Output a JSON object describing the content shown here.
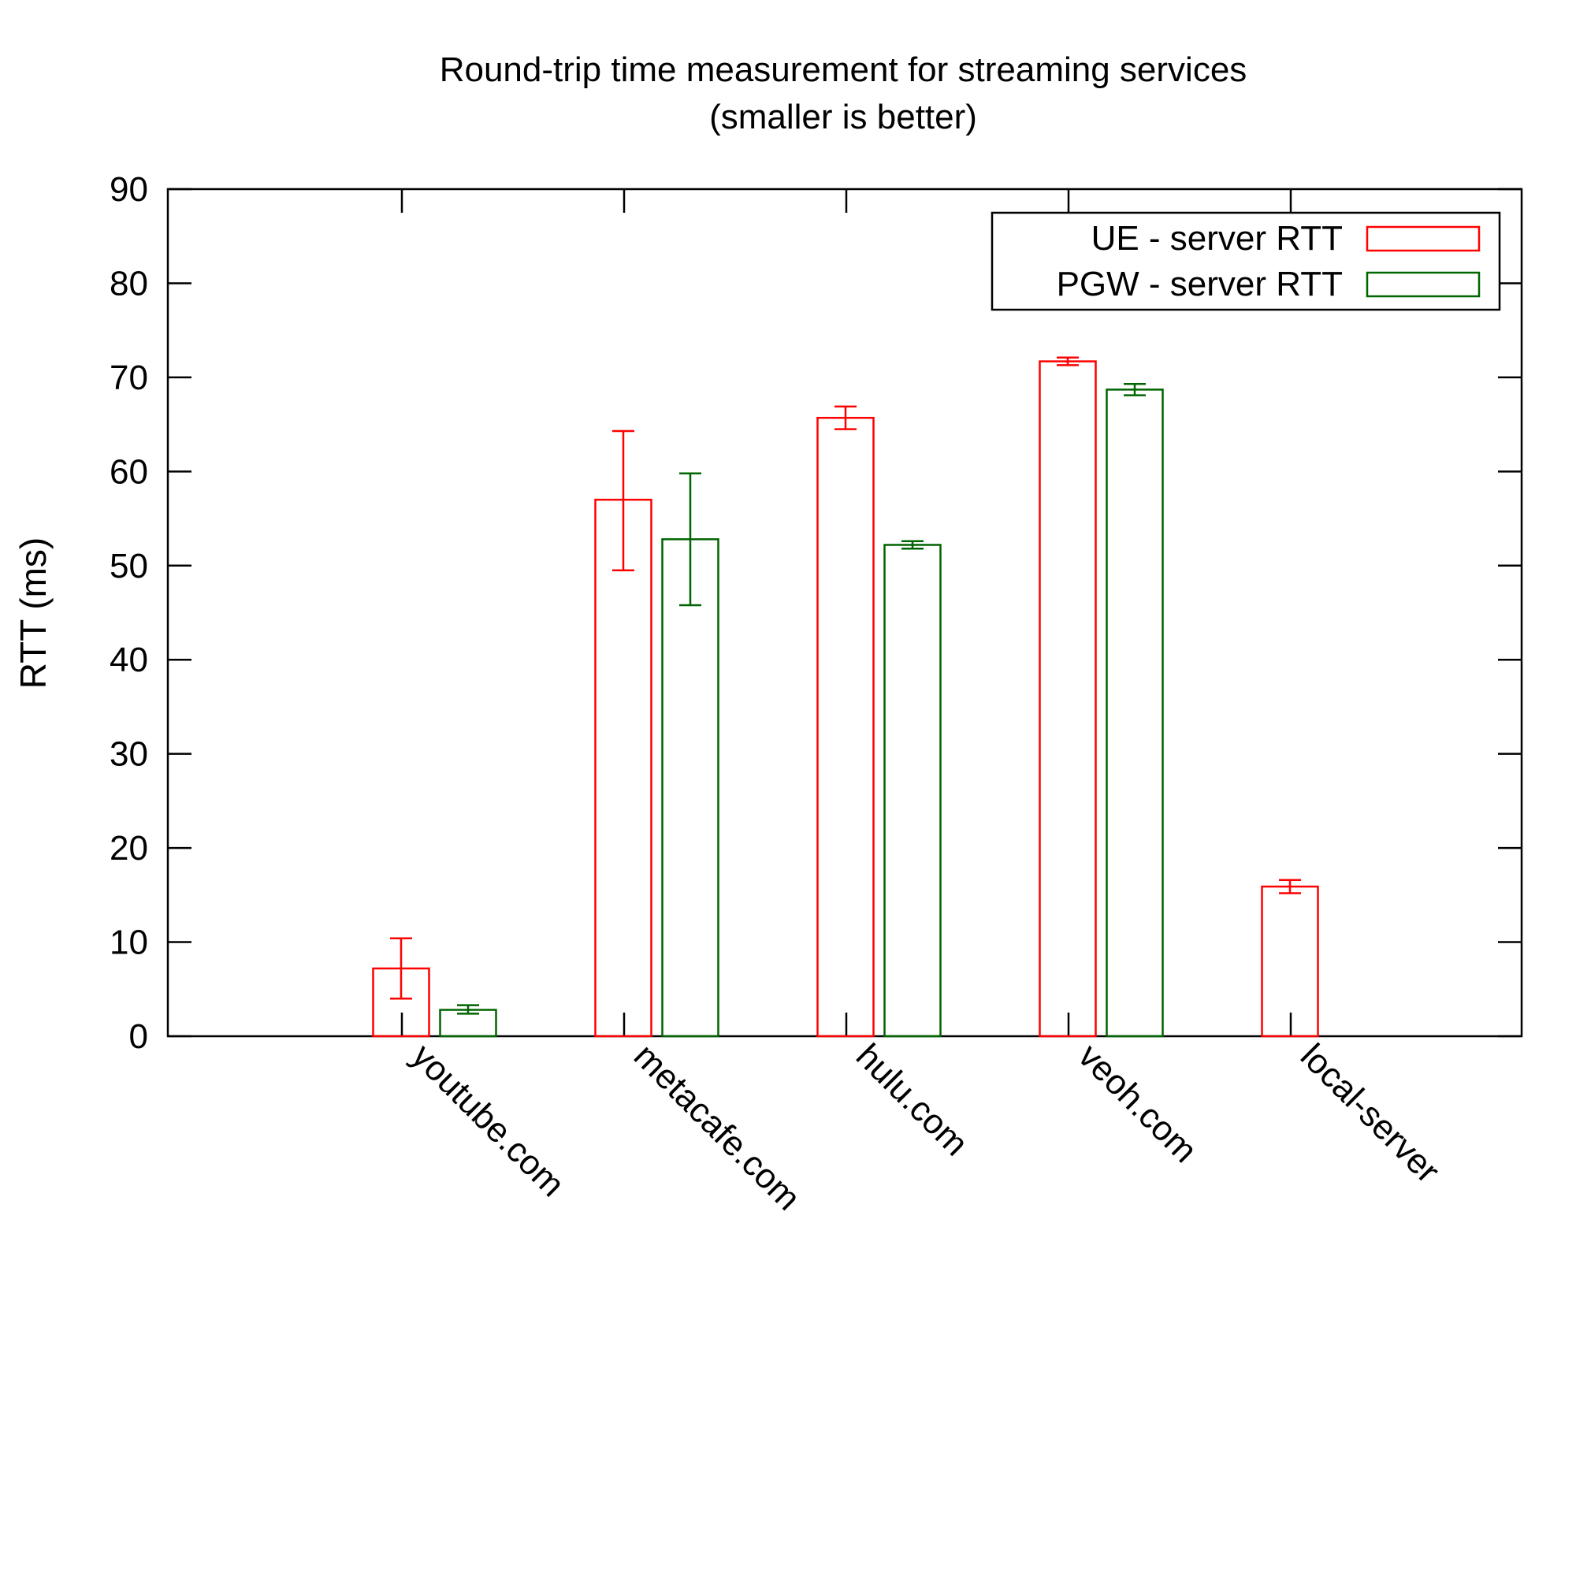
{
  "chart_data": {
    "type": "bar",
    "title": "Round-trip time measurement for streaming services",
    "subtitle": "(smaller is better)",
    "xlabel": "",
    "ylabel": "RTT (ms)",
    "ylim": [
      0,
      90
    ],
    "yticks": [
      0,
      10,
      20,
      30,
      40,
      50,
      60,
      70,
      80,
      90
    ],
    "categories": [
      "youtube.com",
      "metacafe.com",
      "hulu.com",
      "veoh.com",
      "local-server"
    ],
    "legend_position": "top-right",
    "grid": false,
    "series": [
      {
        "name": "UE - server RTT",
        "color": "#ff0000",
        "values": [
          7.2,
          57.0,
          65.7,
          71.7,
          15.9
        ],
        "err_low": [
          4.0,
          49.5,
          64.5,
          71.3,
          15.2
        ],
        "err_high": [
          10.4,
          64.3,
          66.9,
          72.1,
          16.6
        ]
      },
      {
        "name": "PGW - server RTT",
        "color": "#006400",
        "values": [
          2.8,
          52.8,
          52.2,
          68.7,
          null
        ],
        "err_low": [
          2.4,
          45.8,
          51.8,
          68.1,
          null
        ],
        "err_high": [
          3.3,
          59.8,
          52.6,
          69.3,
          null
        ]
      }
    ]
  }
}
